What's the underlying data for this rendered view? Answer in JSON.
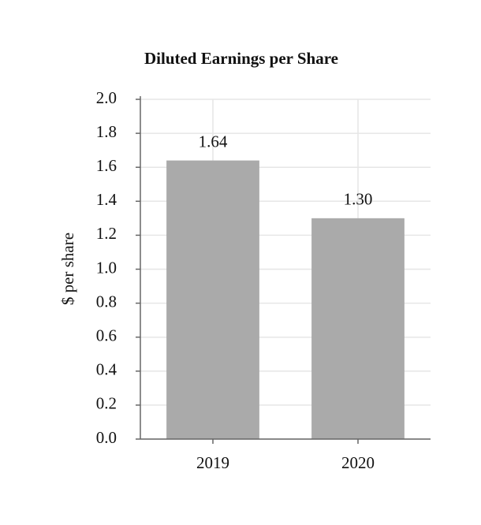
{
  "chart_data": {
    "type": "bar",
    "title": "Diluted Earnings per Share",
    "y_label": "$ per share",
    "categories": [
      "2019",
      "2020"
    ],
    "values": [
      1.64,
      1.3
    ],
    "value_labels": [
      "1.64",
      "1.30"
    ],
    "color": "#aaaaaa",
    "ylim": [
      0,
      2
    ],
    "yticks": [
      {
        "value": 0,
        "label": "0.0"
      },
      0.2,
      0.4,
      0.6,
      0.8,
      {
        "value": 1,
        "label": "1.0"
      },
      1.2,
      1.4,
      1.6,
      1.8,
      {
        "value": 2,
        "label": "2.0"
      }
    ],
    "grid": true
  }
}
